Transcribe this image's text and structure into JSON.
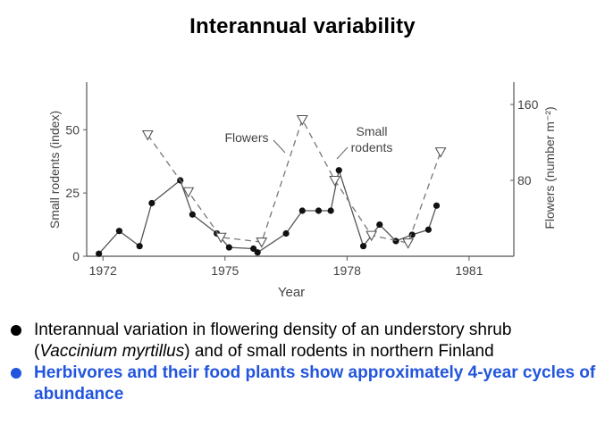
{
  "title": "Interannual variability",
  "chart_data": {
    "type": "line",
    "xlabel": "Year",
    "ylabel_left": "Small rodents (index)",
    "ylabel_right": "Flowers (number m⁻²)",
    "x_ticks": [
      1972,
      1975,
      1978,
      1981
    ],
    "y_left_ticks": [
      0,
      25,
      50
    ],
    "y_right_ticks": [
      80,
      160
    ],
    "xlim": [
      1971.6,
      1982.1
    ],
    "y_left_lim": [
      0,
      66
    ],
    "y_right_lim": [
      0,
      176
    ],
    "series": [
      {
        "name": "Small rodents",
        "axis": "left",
        "style": "solid-filled-circles",
        "points": [
          [
            1971.9,
            1.0
          ],
          [
            1972.4,
            10.0
          ],
          [
            1972.9,
            4.0
          ],
          [
            1973.2,
            21.0
          ],
          [
            1973.9,
            30.0
          ],
          [
            1974.2,
            16.5
          ],
          [
            1974.8,
            9.0
          ],
          [
            1975.1,
            3.5
          ],
          [
            1975.7,
            3.0
          ],
          [
            1975.8,
            1.5
          ],
          [
            1976.5,
            9.0
          ],
          [
            1976.9,
            18.0
          ],
          [
            1977.3,
            18.0
          ],
          [
            1977.6,
            18.0
          ],
          [
            1977.8,
            34.0
          ],
          [
            1978.4,
            4.0
          ],
          [
            1978.8,
            12.5
          ],
          [
            1979.2,
            6.0
          ],
          [
            1979.6,
            8.5
          ],
          [
            1980.0,
            10.5
          ],
          [
            1980.2,
            20.0
          ]
        ]
      },
      {
        "name": "Flowers",
        "axis": "right",
        "style": "dashed-open-triangles",
        "points": [
          [
            1973.1,
            128
          ],
          [
            1974.1,
            68
          ],
          [
            1974.9,
            20
          ],
          [
            1975.9,
            15
          ],
          [
            1976.9,
            144
          ],
          [
            1977.7,
            80
          ],
          [
            1978.6,
            22
          ],
          [
            1979.5,
            14
          ],
          [
            1980.3,
            110
          ]
        ]
      }
    ],
    "annotations": [
      {
        "text": "Flowers",
        "points_to": "Flowers"
      },
      {
        "text": "Small\nrodents",
        "points_to": "Small rodents"
      }
    ],
    "grid": false
  },
  "bullets": [
    {
      "text_pre": "Interannual variation in flowering density of an understory shrub (",
      "text_italic_1": "Vaccinium",
      "text_italic_gap": " ",
      "text_italic_2": "myrtillus",
      "text_post": ") and of small rodents in northern Finland",
      "highlight": false
    },
    {
      "text": "Herbivores and their food plants show approximately 4-year cycles of abundance",
      "highlight": true,
      "color": "#2255dd"
    }
  ]
}
